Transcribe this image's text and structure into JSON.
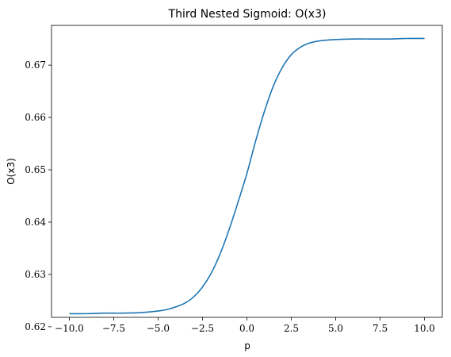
{
  "chart_data": {
    "type": "line",
    "title": "Third Nested Sigmoid: O(x3)",
    "xlabel": "p",
    "ylabel": "O(x3)",
    "xlim": [
      -11.0,
      11.0
    ],
    "ylim": [
      0.6218,
      0.6776
    ],
    "x_ticks": [
      -10.0,
      -7.5,
      -5.0,
      -2.5,
      0.0,
      2.5,
      5.0,
      7.5,
      10.0
    ],
    "x_tick_labels": [
      "−10.0",
      "−7.5",
      "−5.0",
      "−2.5",
      "0.0",
      "2.5",
      "5.0",
      "7.5",
      "10.0"
    ],
    "y_ticks": [
      0.62,
      0.63,
      0.64,
      0.65,
      0.66,
      0.67
    ],
    "y_tick_labels": [
      "0.62",
      "0.63",
      "0.64",
      "0.65",
      "0.66",
      "0.67"
    ],
    "grid": false,
    "series": [
      {
        "color": "#1f77b4",
        "x": [
          -10.0,
          -9.0,
          -8.0,
          -7.0,
          -6.0,
          -5.0,
          -4.5,
          -4.0,
          -3.5,
          -3.0,
          -2.5,
          -2.0,
          -1.5,
          -1.0,
          -0.5,
          0.0,
          0.5,
          1.0,
          1.5,
          2.0,
          2.5,
          3.0,
          3.5,
          4.0,
          5.0,
          6.0,
          7.0,
          8.0,
          9.0,
          10.0
        ],
        "y": [
          0.6225,
          0.6225,
          0.6226,
          0.6226,
          0.6227,
          0.623,
          0.6233,
          0.6238,
          0.6245,
          0.6257,
          0.6276,
          0.6303,
          0.634,
          0.6386,
          0.6438,
          0.6493,
          0.6556,
          0.6613,
          0.6661,
          0.6696,
          0.672,
          0.6734,
          0.6742,
          0.6746,
          0.6749,
          0.675,
          0.675,
          0.675,
          0.6751,
          0.6751
        ]
      }
    ]
  }
}
